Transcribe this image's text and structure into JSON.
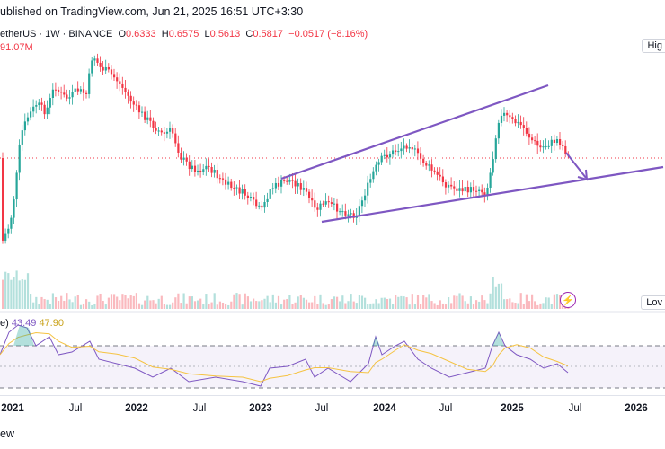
{
  "header": {
    "published": "ublished on TradingView.com, Jun 21, 2025 16:51 UTC+3:30"
  },
  "legend": {
    "symbol": "etherUS · 1W · BINANCE",
    "open_label": "O",
    "open": "0.6333",
    "high_label": "H",
    "high": "0.6575",
    "low_label": "L",
    "low": "0.5613",
    "close_label": "C",
    "close": "0.5817",
    "change": "−0.0517 (−8.16%)",
    "volume": "91.07M"
  },
  "price_tags": {
    "high": "Hig",
    "low": "Lov"
  },
  "rsi": {
    "label": "e)",
    "rsi_value": "43.49",
    "ma_value": "47.90"
  },
  "time_axis": {
    "ticks": [
      {
        "label": "2021",
        "year": true
      },
      {
        "label": "Jul",
        "year": false
      },
      {
        "label": "2022",
        "year": true
      },
      {
        "label": "Jul",
        "year": false
      },
      {
        "label": "2023",
        "year": true
      },
      {
        "label": "Jul",
        "year": false
      },
      {
        "label": "2024",
        "year": true
      },
      {
        "label": "Jul",
        "year": false
      },
      {
        "label": "2025",
        "year": true
      },
      {
        "label": "Jul",
        "year": false
      },
      {
        "label": "2026",
        "year": true
      }
    ]
  },
  "footer": {
    "text": "ew"
  },
  "colors": {
    "up": "#26a69a",
    "down": "#f23645",
    "trend": "#7e57c2",
    "rsi": "#7e57c2",
    "rsi_ma": "#f5c342"
  },
  "icons": {
    "flash": "lightning-icon"
  }
}
